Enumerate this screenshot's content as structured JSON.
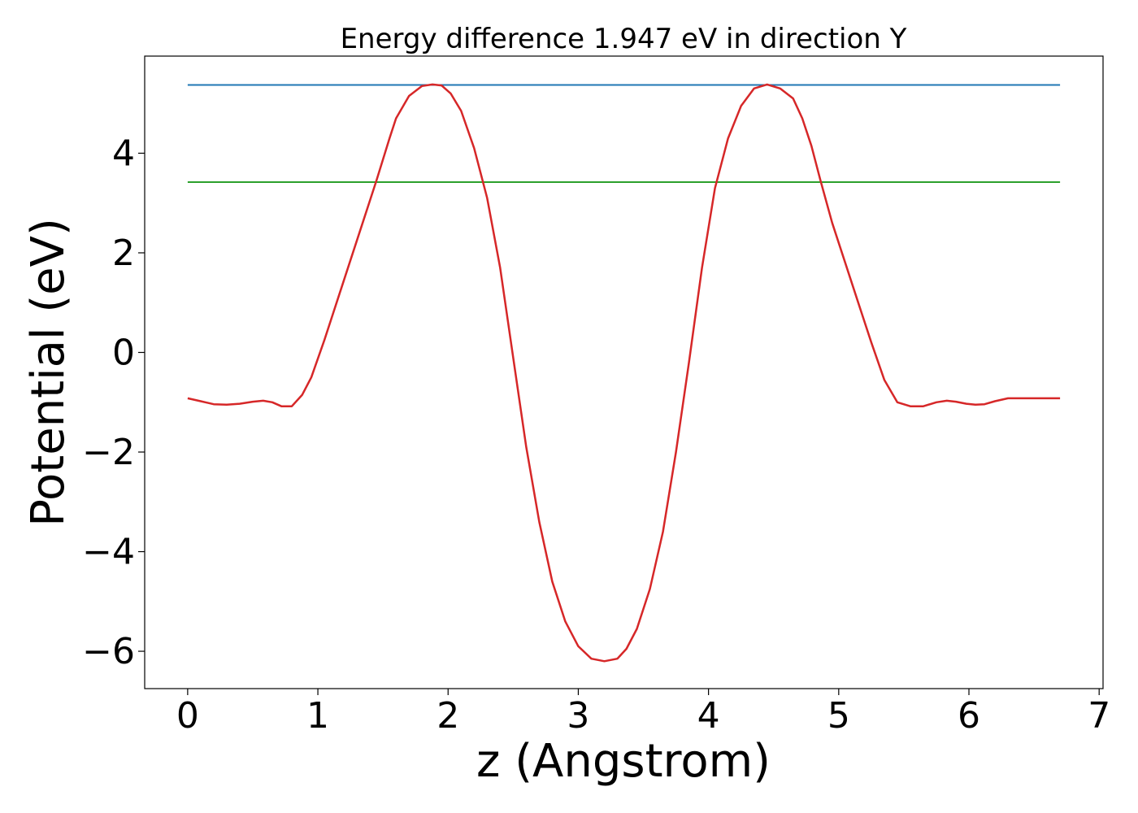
{
  "chart_data": {
    "type": "line",
    "title": "Energy difference 1.947 eV in direction Y",
    "xlabel": "z (Angstrom)",
    "ylabel": "Potential (eV)",
    "xlim": [
      -0.33,
      7.03
    ],
    "ylim": [
      -6.75,
      5.95
    ],
    "xticks": [
      0,
      1,
      2,
      3,
      4,
      5,
      6,
      7
    ],
    "yticks": [
      -6,
      -4,
      -2,
      0,
      2,
      4
    ],
    "xtick_labels": [
      "0",
      "1",
      "2",
      "3",
      "4",
      "5",
      "6",
      "7"
    ],
    "ytick_labels": [
      "−6",
      "−4",
      "−2",
      "0",
      "2",
      "4"
    ],
    "grid": false,
    "series": [
      {
        "color": "#d62728",
        "x": [
          0.0,
          0.1,
          0.2,
          0.3,
          0.4,
          0.5,
          0.58,
          0.65,
          0.72,
          0.8,
          0.88,
          0.95,
          1.05,
          1.15,
          1.25,
          1.35,
          1.45,
          1.55,
          1.6,
          1.7,
          1.8,
          1.88,
          1.95,
          2.02,
          2.1,
          2.2,
          2.3,
          2.4,
          2.5,
          2.6,
          2.7,
          2.8,
          2.9,
          3.0,
          3.1,
          3.2,
          3.3,
          3.37,
          3.45,
          3.55,
          3.65,
          3.75,
          3.85,
          3.95,
          4.05,
          4.15,
          4.25,
          4.35,
          4.45,
          4.55,
          4.65,
          4.72,
          4.79,
          4.86,
          4.95,
          5.05,
          5.15,
          5.25,
          5.35,
          5.45,
          5.55,
          5.65,
          5.75,
          5.83,
          5.9,
          5.98,
          6.05,
          6.12,
          6.2,
          6.3,
          6.4,
          6.5,
          6.6,
          6.7
        ],
        "y": [
          -0.92,
          -0.98,
          -1.04,
          -1.05,
          -1.03,
          -0.99,
          -0.97,
          -1.0,
          -1.08,
          -1.08,
          -0.85,
          -0.5,
          0.25,
          1.05,
          1.85,
          2.65,
          3.45,
          4.3,
          4.7,
          5.15,
          5.35,
          5.38,
          5.36,
          5.2,
          4.85,
          4.1,
          3.1,
          1.7,
          -0.1,
          -1.9,
          -3.4,
          -4.6,
          -5.4,
          -5.9,
          -6.15,
          -6.2,
          -6.15,
          -5.95,
          -5.55,
          -4.75,
          -3.6,
          -2.0,
          -0.2,
          1.7,
          3.3,
          4.3,
          4.95,
          5.3,
          5.38,
          5.3,
          5.1,
          4.7,
          4.15,
          3.45,
          2.6,
          1.8,
          1.0,
          0.2,
          -0.55,
          -1.0,
          -1.08,
          -1.08,
          -1.0,
          -0.97,
          -0.99,
          -1.03,
          -1.05,
          -1.04,
          -0.98,
          -0.92,
          -0.92,
          -0.92,
          -0.92,
          -0.92
        ]
      },
      {
        "color": "#1f77b4",
        "x": [
          0.0,
          6.7
        ],
        "y": [
          5.37,
          5.37
        ]
      },
      {
        "color": "#2ca02c",
        "x": [
          0.0,
          6.7
        ],
        "y": [
          3.42,
          3.42
        ]
      }
    ]
  }
}
